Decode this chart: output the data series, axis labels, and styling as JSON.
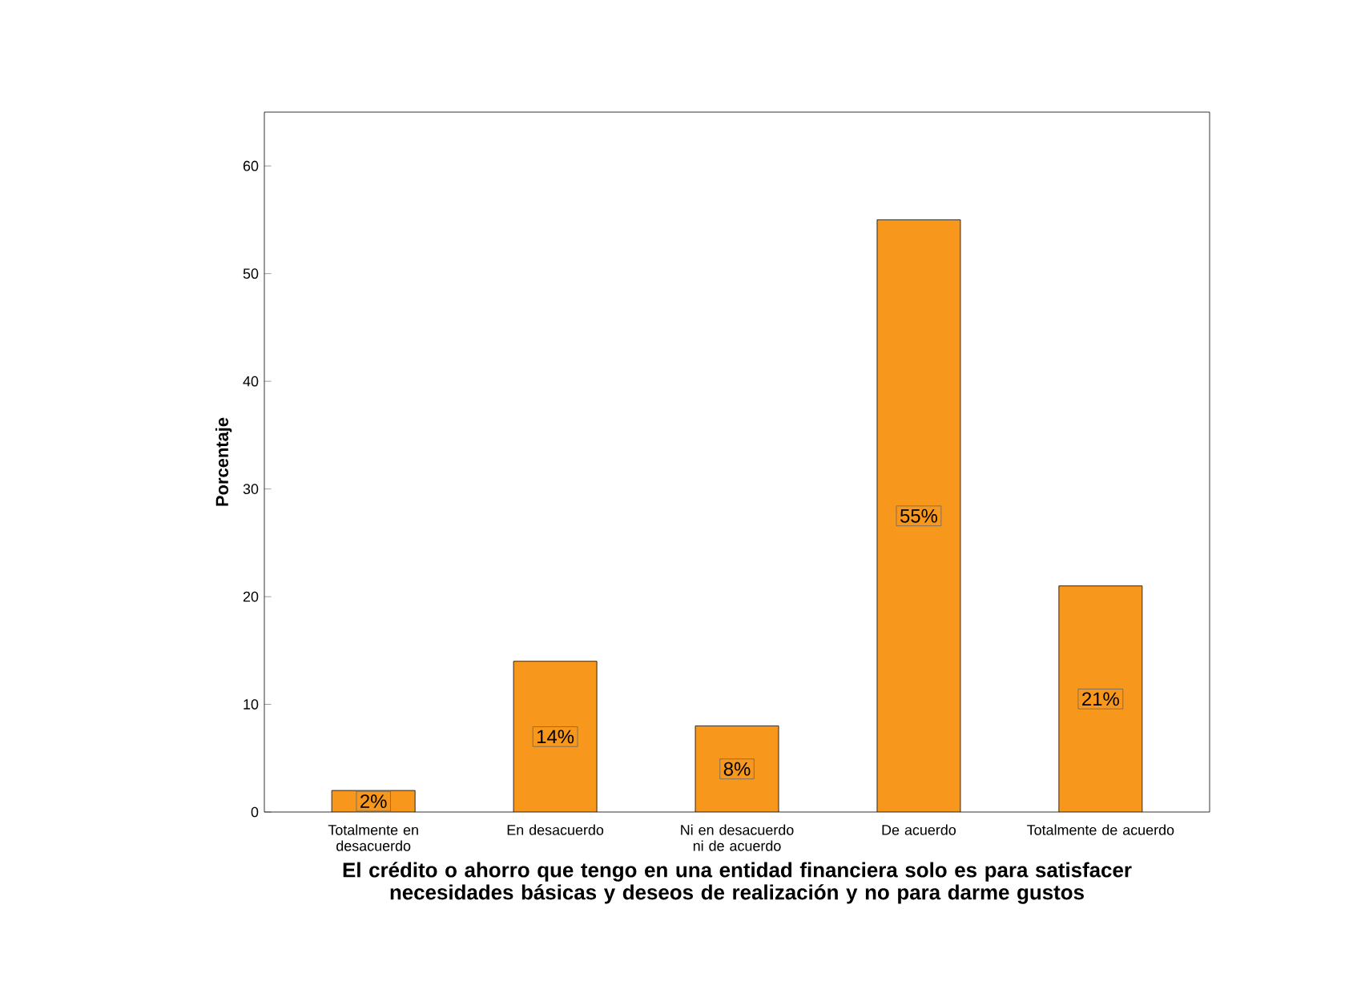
{
  "chart_data": {
    "type": "bar",
    "xlabel": "El crédito o ahorro que tengo en una entidad financiera solo es para satisfacer necesidades básicas y deseos de realización y no para darme gustos",
    "ylabel": "Porcentaje",
    "categories": [
      "Totalmente en desacuerdo",
      "En desacuerdo",
      "Ni en desacuerdo ni de acuerdo",
      "De acuerdo",
      "Totalmente de acuerdo"
    ],
    "values": [
      2,
      14,
      8,
      55,
      21
    ],
    "value_labels": [
      "2%",
      "14%",
      "8%",
      "55%",
      "21%"
    ],
    "color": "#f7981d",
    "ylim": [
      0,
      65
    ],
    "yticks": [
      0,
      10,
      20,
      30,
      40,
      50,
      60
    ],
    "grid": false
  }
}
